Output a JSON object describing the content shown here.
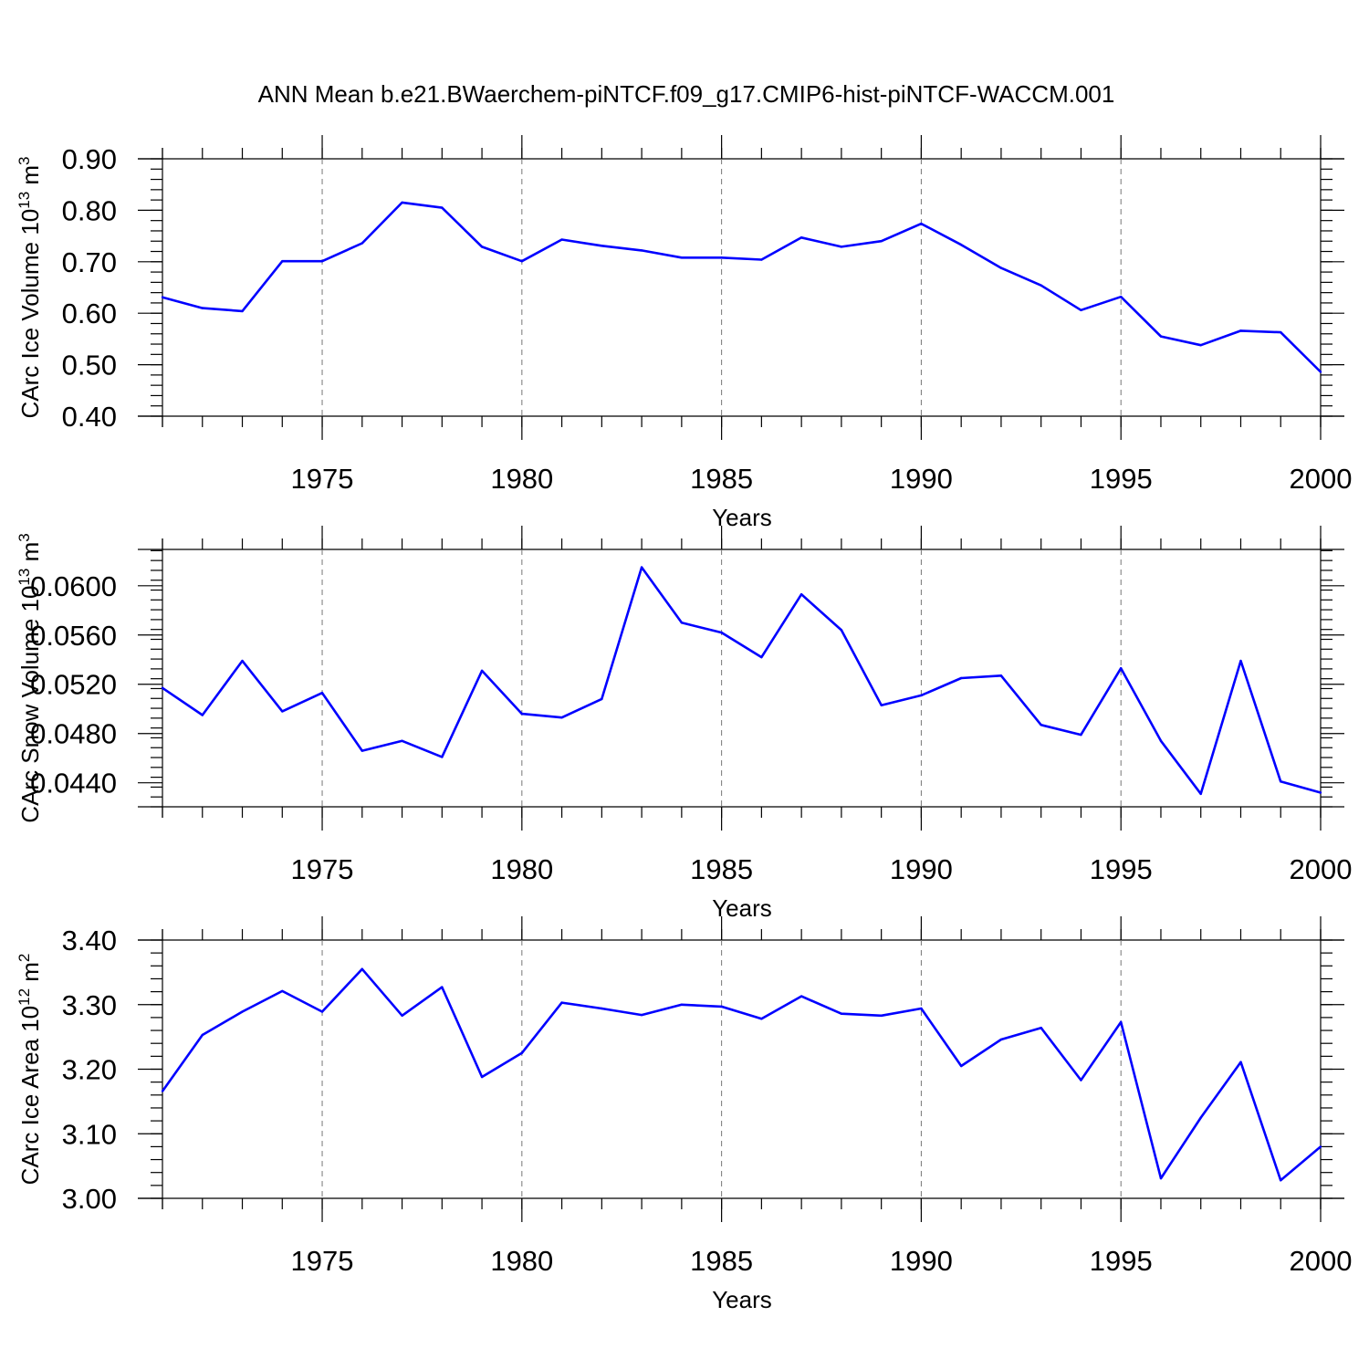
{
  "title": "ANN Mean b.e21.BWaerchem-piNTCF.f09_g17.CMIP6-hist-piNTCF-WACCM.001",
  "colors": {
    "line": "#0000ff",
    "grid": "#777777",
    "axis": "#000000"
  },
  "chart_data": [
    {
      "type": "line",
      "ylabel": "CArc Ice Volume 10",
      "ylabel_sup": "13",
      "ylabel_unit": " m",
      "ylabel_unit_sup": "3",
      "xlabel": "Years",
      "xlim": [
        1971,
        2000
      ],
      "ylim": [
        0.4,
        0.9
      ],
      "yticks": [
        0.4,
        0.5,
        0.6,
        0.7,
        0.8,
        0.9
      ],
      "ytick_labels": [
        "0.40",
        "0.50",
        "0.60",
        "0.70",
        "0.80",
        "0.90"
      ],
      "xticks": [
        1975,
        1980,
        1985,
        1990,
        1995,
        2000
      ],
      "xtick_labels": [
        "1975",
        "1980",
        "1985",
        "1990",
        "1995",
        "2000"
      ],
      "x": [
        1971,
        1972,
        1973,
        1974,
        1975,
        1976,
        1977,
        1978,
        1979,
        1980,
        1981,
        1982,
        1983,
        1984,
        1985,
        1986,
        1987,
        1988,
        1989,
        1990,
        1991,
        1992,
        1993,
        1994,
        1995,
        1996,
        1997,
        1998,
        1999,
        2000
      ],
      "y": [
        0.631,
        0.61,
        0.604,
        0.701,
        0.701,
        0.736,
        0.815,
        0.805,
        0.729,
        0.701,
        0.743,
        0.731,
        0.722,
        0.708,
        0.708,
        0.704,
        0.747,
        0.729,
        0.74,
        0.774,
        0.733,
        0.688,
        0.654,
        0.606,
        0.632,
        0.555,
        0.538,
        0.566,
        0.563,
        0.486
      ]
    },
    {
      "type": "line",
      "ylabel": "CArc Snow Volume 10",
      "ylabel_sup": "13",
      "ylabel_unit": " m",
      "ylabel_unit_sup": "3",
      "xlabel": "Years",
      "xlim": [
        1971,
        2000
      ],
      "ylim": [
        0.042,
        0.063
      ],
      "yticks": [
        0.044,
        0.048,
        0.052,
        0.056,
        0.06
      ],
      "ytick_labels": [
        "0.0440",
        "0.0480",
        "0.0520",
        "0.0560",
        "0.0600"
      ],
      "xticks": [
        1975,
        1980,
        1985,
        1990,
        1995,
        2000
      ],
      "xtick_labels": [
        "1975",
        "1980",
        "1985",
        "1990",
        "1995",
        "2000"
      ],
      "x": [
        1971,
        1972,
        1973,
        1974,
        1975,
        1976,
        1977,
        1978,
        1979,
        1980,
        1981,
        1982,
        1983,
        1984,
        1985,
        1986,
        1987,
        1988,
        1989,
        1990,
        1991,
        1992,
        1993,
        1994,
        1995,
        1996,
        1997,
        1998,
        1999,
        2000
      ],
      "y": [
        0.0517,
        0.0495,
        0.0539,
        0.0498,
        0.0513,
        0.0466,
        0.0474,
        0.0461,
        0.0531,
        0.0496,
        0.0493,
        0.0508,
        0.0615,
        0.057,
        0.0562,
        0.0542,
        0.0593,
        0.0564,
        0.0503,
        0.0511,
        0.0525,
        0.0527,
        0.0487,
        0.0479,
        0.0533,
        0.0474,
        0.0431,
        0.0539,
        0.0441,
        0.0432
      ]
    },
    {
      "type": "line",
      "ylabel": "CArc Ice Area 10",
      "ylabel_sup": "12",
      "ylabel_unit": " m",
      "ylabel_unit_sup": "2",
      "xlabel": "Years",
      "xlim": [
        1971,
        2000
      ],
      "ylim": [
        3.0,
        3.4
      ],
      "yticks": [
        3.0,
        3.1,
        3.2,
        3.3,
        3.4
      ],
      "ytick_labels": [
        "3.00",
        "3.10",
        "3.20",
        "3.30",
        "3.40"
      ],
      "xticks": [
        1975,
        1980,
        1985,
        1990,
        1995,
        2000
      ],
      "xtick_labels": [
        "1975",
        "1980",
        "1985",
        "1990",
        "1995",
        "2000"
      ],
      "x": [
        1971,
        1972,
        1973,
        1974,
        1975,
        1976,
        1977,
        1978,
        1979,
        1980,
        1981,
        1982,
        1983,
        1984,
        1985,
        1986,
        1987,
        1988,
        1989,
        1990,
        1991,
        1992,
        1993,
        1994,
        1995,
        1996,
        1997,
        1998,
        1999,
        2000
      ],
      "y": [
        3.166,
        3.253,
        3.289,
        3.321,
        3.289,
        3.355,
        3.283,
        3.327,
        3.188,
        3.225,
        3.303,
        3.294,
        3.284,
        3.3,
        3.297,
        3.278,
        3.313,
        3.286,
        3.283,
        3.294,
        3.205,
        3.246,
        3.264,
        3.183,
        3.273,
        3.031,
        3.125,
        3.211,
        3.028,
        3.08
      ]
    }
  ]
}
